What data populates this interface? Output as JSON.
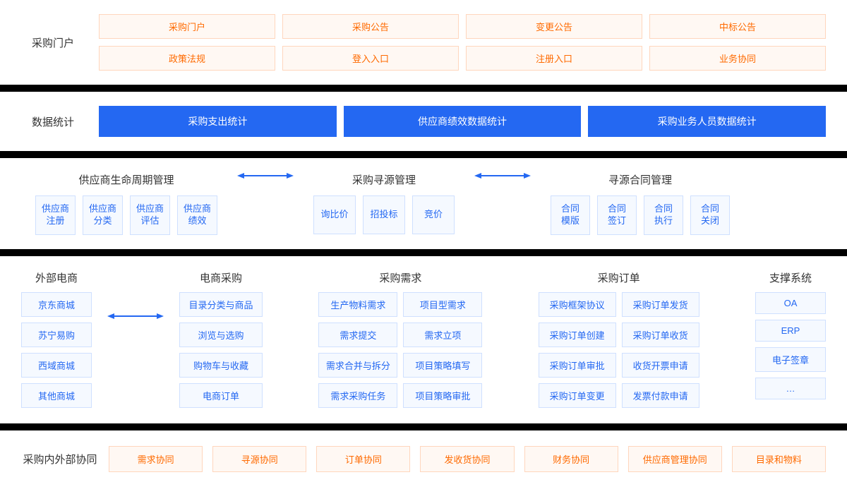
{
  "colors": {
    "orange_text": "#ff6a00",
    "orange_border": "#ffd6bd",
    "orange_bg": "#fff8f3",
    "blue_text": "#2468f2",
    "blue_border": "#cfe0ff",
    "blue_bg": "#f5f9ff",
    "blue_fill": "#2468f2",
    "divider": "#000000",
    "page_bg": "#ffffff",
    "label_text": "#333333"
  },
  "typography": {
    "section_label_fontsize": 15,
    "group_title_fontsize": 15,
    "cell_fontsize": 13
  },
  "section1": {
    "label": "采购门户",
    "row1": [
      "采购门户",
      "采购公告",
      "变更公告",
      "中标公告"
    ],
    "row2": [
      "政策法规",
      "登入入口",
      "注册入口",
      "业务协同"
    ]
  },
  "section2": {
    "label": "数据统计",
    "items": [
      "采购支出统计",
      "供应商绩效数据统计",
      "采购业务人员数据统计"
    ]
  },
  "section3": {
    "group1": {
      "title": "供应商生命周期管理",
      "items": [
        "供应商\n注册",
        "供应商\n分类",
        "供应商\n评估",
        "供应商\n绩效"
      ]
    },
    "group2": {
      "title": "采购寻源管理",
      "items": [
        "询比价",
        "招投标",
        "竞价"
      ]
    },
    "group3": {
      "title": "寻源合同管理",
      "items": [
        "合同\n模版",
        "合同\n签订",
        "合同\n执行",
        "合同\n关闭"
      ]
    }
  },
  "section4": {
    "group1": {
      "title": "外部电商",
      "col": [
        "京东商城",
        "苏宁易购",
        "西域商城",
        "其他商城"
      ]
    },
    "group2": {
      "title": "电商采购",
      "col": [
        "目录分类与商品",
        "浏览与选购",
        "购物车与收藏",
        "电商订单"
      ]
    },
    "group3": {
      "title": "采购需求",
      "colA": [
        "生产物料需求",
        "需求提交",
        "需求合并与拆分",
        "需求采购任务"
      ],
      "colB": [
        "项目型需求",
        "需求立项",
        "项目策略填写",
        "项目策略审批"
      ]
    },
    "group4": {
      "title": "采购订单",
      "colA": [
        "采购框架协议",
        "采购订单创建",
        "采购订单审批",
        "采购订单变更"
      ],
      "colB": [
        "采购订单发货",
        "采购订单收货",
        "收货开票申请",
        "发票付款申请"
      ]
    },
    "group5": {
      "title": "支撑系统",
      "col": [
        "OA",
        "ERP",
        "电子签章",
        "…"
      ]
    }
  },
  "section5": {
    "label": "采购内外部协同",
    "items": [
      "需求协同",
      "寻源协同",
      "订单协同",
      "发收货协同",
      "财务协同",
      "供应商管理协同",
      "目录和物料"
    ]
  }
}
